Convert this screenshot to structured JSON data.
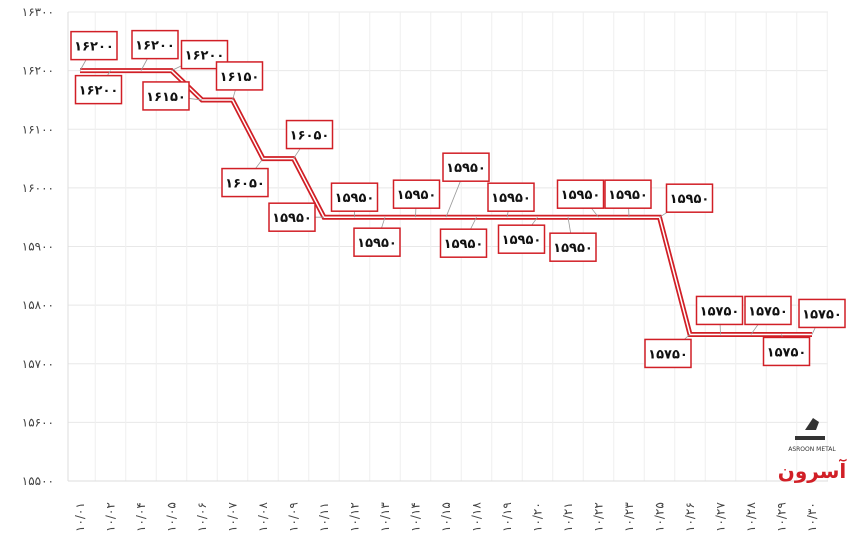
{
  "chart_data": {
    "type": "line",
    "title": "",
    "xlabel": "",
    "ylabel": "",
    "ylim": [
      15500,
      16300
    ],
    "grid": true,
    "x": [
      "10/01",
      "10/02",
      "10/04",
      "10/05",
      "10/06",
      "10/07",
      "10/08",
      "10/09",
      "10/11",
      "10/12",
      "10/13",
      "10/14",
      "10/15",
      "10/18",
      "10/19",
      "10/20",
      "10/21",
      "10/22",
      "10/23",
      "10/25",
      "10/26",
      "10/27",
      "10/28",
      "10/29",
      "10/30"
    ],
    "x_tick_labels": [
      "۱۰/۰۱",
      "۱۰/۰۲",
      "۱۰/۰۴",
      "۱۰/۰۵",
      "۱۰/۰۶",
      "۱۰/۰۷",
      "۱۰/۰۸",
      "۱۰/۰۹",
      "۱۰/۱۱",
      "۱۰/۱۲",
      "۱۰/۱۳",
      "۱۰/۱۴",
      "۱۰/۱۵",
      "۱۰/۱۸",
      "۱۰/۱۹",
      "۱۰/۲۰",
      "۱۰/۲۱",
      "۱۰/۲۲",
      "۱۰/۲۳",
      "۱۰/۲۵",
      "۱۰/۲۶",
      "۱۰/۲۷",
      "۱۰/۲۸",
      "۱۰/۲۹",
      "۱۰/۳۰"
    ],
    "values": [
      16200,
      16200,
      16200,
      16200,
      16150,
      16150,
      16050,
      16050,
      15950,
      15950,
      15950,
      15950,
      15950,
      15950,
      15950,
      15950,
      15950,
      15950,
      15950,
      15950,
      15750,
      15750,
      15750,
      15750,
      15750
    ],
    "data_labels": [
      "۱۶۲۰۰",
      "۱۶۲۰۰",
      "۱۶۲۰۰",
      "۱۶۲۰۰",
      "۱۶۱۵۰",
      "۱۶۱۵۰",
      "۱۶۰۵۰",
      "۱۶۰۵۰",
      "۱۵۹۵۰",
      "۱۵۹۵۰",
      "۱۵۹۵۰",
      "۱۵۹۵۰",
      "۱۵۹۵۰",
      "۱۵۹۵۰",
      "۱۵۹۵۰",
      "۱۵۹۵۰",
      "۱۵۹۵۰",
      "۱۵۹۵۰",
      "۱۵۹۵۰",
      "۱۵۹۵۰",
      "۱۵۷۵۰",
      "۱۵۷۵۰",
      "۱۵۷۵۰",
      "۱۵۷۵۰",
      "۱۵۷۵۰"
    ],
    "y_ticks": [
      15500,
      15600,
      15700,
      15800,
      15900,
      16000,
      16100,
      16200,
      16300
    ],
    "y_tick_labels": [
      "۱۵۵۰۰",
      "۱۵۶۰۰",
      "۱۵۷۰۰",
      "۱۵۸۰۰",
      "۱۵۹۰۰",
      "۱۶۰۰۰",
      "۱۶۱۰۰",
      "۱۶۲۰۰",
      "۱۶۳۰۰"
    ],
    "line_color": "#d11f26"
  },
  "logo": {
    "text": "آسرون",
    "subtext": "ASROON METAL"
  }
}
